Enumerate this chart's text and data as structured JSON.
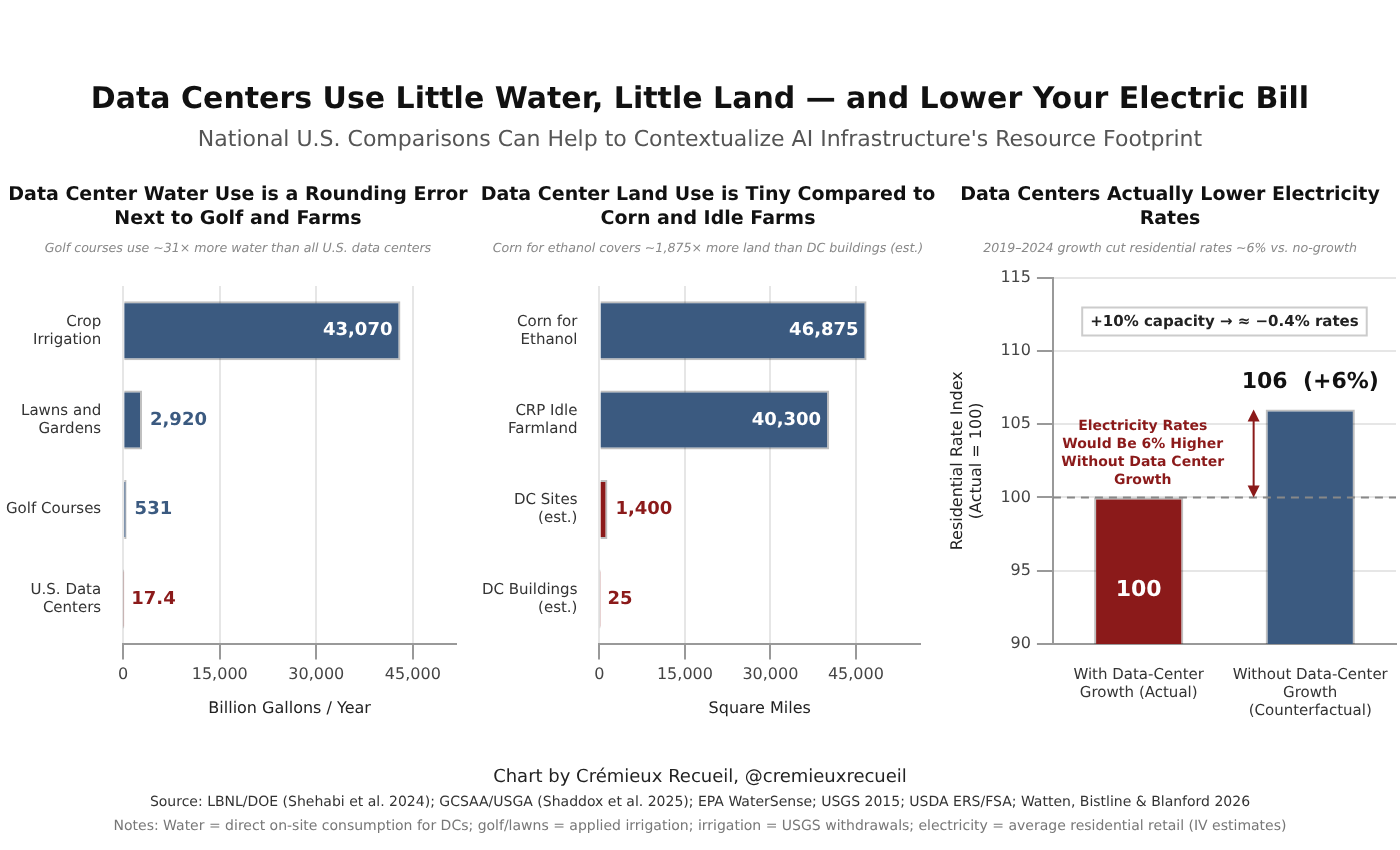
{
  "chart_data": [
    {
      "type": "other",
      "title": "Data Centers Use Little Water, Little Land — and Lower Your Electric Bill",
      "subtitle": "National U.S. Comparisons Can Help to Contextualize AI Infrastructure's Resource Footprint",
      "annotations": [
        "Chart by Crémieux Recueil, @cremieuxrecueil",
        "Source: LBNL/DOE (Shehabi et al. 2024); GCSAA/USGA (Shaddox et al. 2025); EPA WaterSense; USGS 2015; USDA ERS/FSA; Watten, Bistline & Blanford 2026",
        "Notes: Water = direct on-site consumption for DCs; golf/lawns = applied irrigation; irrigation = USGS withdrawals; electricity = average residential retail (IV estimates)"
      ]
    },
    {
      "type": "bar",
      "orientation": "horizontal",
      "title": "Data Center Water Use is a Rounding Error Next to Golf and Farms",
      "subtitle": "Golf courses use ~31× more water than all U.S. data centers",
      "xlabel": "Billion Gallons / Year",
      "categories": [
        "Crop Irrigation",
        "Lawns and Gardens",
        "Golf Courses",
        "U.S. Data Centers"
      ],
      "values": [
        43070,
        2920,
        531,
        17.4
      ],
      "colors": [
        "#3b5a80",
        "#3b5a80",
        "#3b5a80",
        "#8b1a1a"
      ],
      "value_labels": [
        "43,070",
        "2,920",
        "531",
        "17.4"
      ],
      "xlim": [
        0,
        51700
      ],
      "xticks": [
        0,
        {
          "value": 15000,
          "label": "15,000"
        },
        {
          "value": 30000,
          "label": "30,000"
        },
        {
          "value": 45000,
          "label": "45,000"
        }
      ],
      "grid": "x"
    },
    {
      "type": "bar",
      "orientation": "horizontal",
      "title": "Data Center Land Use is Tiny Compared to Corn and Idle Farms",
      "subtitle": "Corn for ethanol covers ~1,875× more land than DC buildings (est.)",
      "xlabel": "Square Miles",
      "categories": [
        "Corn for Ethanol",
        "CRP Idle Farmland",
        "DC Sites (est.)",
        "DC Buildings (est.)"
      ],
      "values": [
        46875,
        40300,
        1400,
        25
      ],
      "colors": [
        "#3b5a80",
        "#3b5a80",
        "#8b1a1a",
        "#8b1a1a"
      ],
      "value_labels": [
        "46,875",
        "40,300",
        "1,400",
        "25"
      ],
      "xlim": [
        0,
        56250
      ],
      "xticks": [
        0,
        {
          "value": 15000,
          "label": "15,000"
        },
        {
          "value": 30000,
          "label": "30,000"
        },
        {
          "value": 45000,
          "label": "45,000"
        }
      ],
      "grid": "x"
    },
    {
      "type": "bar",
      "title": "Data Centers Actually Lower Electricity Rates",
      "subtitle": "2019–2024 growth cut residential rates ~6% vs. no-growth",
      "ylabel": "Residential Rate Index (Actual = 100)",
      "categories": [
        "With Data-Center Growth (Actual)",
        "Without Data-Center Growth (Counterfactual)"
      ],
      "values": [
        100,
        106
      ],
      "colors": [
        "#8b1a1a",
        "#3b5a80"
      ],
      "value_labels": [
        "100",
        "106  (+6%)"
      ],
      "ylim": [
        90,
        115
      ],
      "yticks": [
        90,
        95,
        100,
        105,
        110,
        115
      ],
      "grid": "y",
      "ref_lines": [
        {
          "axis": "y",
          "value": 100,
          "color": "#888888",
          "line_style": "dashed"
        }
      ],
      "annotations": [
        "+10% capacity → ≈ −0.4% rates",
        "Electricity Rates Would Be 6% Higher Without Data Center Growth"
      ]
    }
  ]
}
